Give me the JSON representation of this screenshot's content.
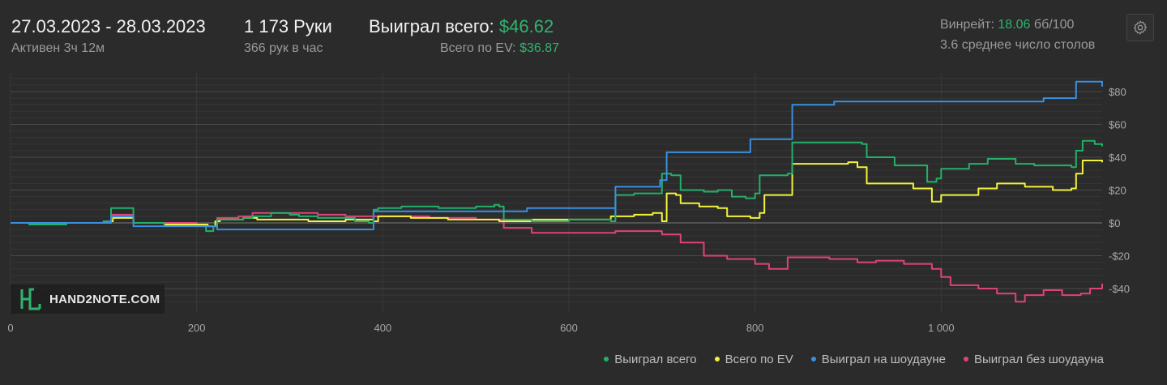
{
  "header": {
    "date_range": "27.03.2023 - 28.03.2023",
    "active_label": "Активен 3ч 12м",
    "hands": "1 173 Руки",
    "hands_per_hour": "366 рук в час",
    "won_total_label": "Выиграл всего:",
    "won_total_value": "$46.62",
    "ev_label": "Всего по EV:",
    "ev_value": "$36.87",
    "winrate_label": "Винрейт:",
    "winrate_value": "18.06",
    "winrate_unit": "бб/100",
    "avg_tables": "3.6 среднее число столов"
  },
  "logo": {
    "text": "HAND2NOTE.COM"
  },
  "icons": {
    "settings": "gear-icon",
    "logo": "hand2note-logo-icon"
  },
  "colors": {
    "won_total": "#23b06a",
    "ev": "#f2f23c",
    "showdown": "#3a8fe0",
    "non_showdown": "#e0427a",
    "background": "#2b2b2b"
  },
  "chart_data": {
    "type": "line",
    "title": "",
    "xlabel": "",
    "ylabel": "",
    "xlim": [
      0,
      1173
    ],
    "ylim": [
      -50,
      90
    ],
    "x_ticks": [
      0,
      200,
      400,
      600,
      800,
      1000
    ],
    "x_tick_labels": [
      "0",
      "200",
      "400",
      "600",
      "800",
      "1 000"
    ],
    "y_ticks": [
      80,
      60,
      40,
      20,
      0,
      -20,
      -40
    ],
    "y_tick_labels": [
      "$80",
      "$60",
      "$40",
      "$20",
      "$0",
      "-$20",
      "-$40"
    ],
    "grid": true,
    "legend_position": "bottom-right",
    "series": [
      {
        "name": "Выиграл всего",
        "color": "#23b06a",
        "points": [
          [
            0,
            0
          ],
          [
            20,
            -1
          ],
          [
            60,
            0
          ],
          [
            100,
            1
          ],
          [
            108,
            9
          ],
          [
            128,
            9
          ],
          [
            132,
            0
          ],
          [
            165,
            -2
          ],
          [
            205,
            -2
          ],
          [
            210,
            -5
          ],
          [
            218,
            -2
          ],
          [
            222,
            2
          ],
          [
            245,
            2
          ],
          [
            250,
            3
          ],
          [
            260,
            4
          ],
          [
            280,
            6
          ],
          [
            300,
            5
          ],
          [
            310,
            4
          ],
          [
            330,
            3
          ],
          [
            370,
            1
          ],
          [
            385,
            0
          ],
          [
            390,
            8
          ],
          [
            395,
            9
          ],
          [
            420,
            10
          ],
          [
            460,
            9
          ],
          [
            500,
            10
          ],
          [
            520,
            11
          ],
          [
            525,
            10
          ],
          [
            530,
            2
          ],
          [
            560,
            1
          ],
          [
            600,
            2
          ],
          [
            630,
            2
          ],
          [
            645,
            1
          ],
          [
            650,
            17
          ],
          [
            670,
            18
          ],
          [
            690,
            18
          ],
          [
            700,
            30
          ],
          [
            710,
            29
          ],
          [
            720,
            20
          ],
          [
            745,
            19
          ],
          [
            760,
            20
          ],
          [
            775,
            16
          ],
          [
            790,
            15
          ],
          [
            800,
            18
          ],
          [
            805,
            29
          ],
          [
            825,
            29
          ],
          [
            835,
            30
          ],
          [
            840,
            49
          ],
          [
            880,
            49
          ],
          [
            915,
            48
          ],
          [
            920,
            40
          ],
          [
            950,
            35
          ],
          [
            985,
            25
          ],
          [
            995,
            27
          ],
          [
            1000,
            33
          ],
          [
            1030,
            36
          ],
          [
            1050,
            39
          ],
          [
            1080,
            36
          ],
          [
            1100,
            35
          ],
          [
            1140,
            34
          ],
          [
            1145,
            44
          ],
          [
            1152,
            50
          ],
          [
            1165,
            48
          ],
          [
            1173,
            46.62
          ]
        ]
      },
      {
        "name": "Всего по EV",
        "color": "#f2f23c",
        "points": [
          [
            0,
            0
          ],
          [
            30,
            0
          ],
          [
            60,
            0
          ],
          [
            100,
            1
          ],
          [
            110,
            3
          ],
          [
            125,
            3
          ],
          [
            132,
            0
          ],
          [
            165,
            -1
          ],
          [
            205,
            -1
          ],
          [
            212,
            -2
          ],
          [
            220,
            1
          ],
          [
            225,
            2
          ],
          [
            250,
            3
          ],
          [
            265,
            2
          ],
          [
            290,
            2
          ],
          [
            320,
            1
          ],
          [
            360,
            2
          ],
          [
            390,
            1
          ],
          [
            395,
            4
          ],
          [
            430,
            3
          ],
          [
            470,
            2
          ],
          [
            525,
            1
          ],
          [
            560,
            2
          ],
          [
            600,
            2
          ],
          [
            645,
            4
          ],
          [
            650,
            4
          ],
          [
            670,
            5
          ],
          [
            690,
            6
          ],
          [
            700,
            1
          ],
          [
            705,
            18
          ],
          [
            715,
            17
          ],
          [
            720,
            12
          ],
          [
            740,
            10
          ],
          [
            760,
            9
          ],
          [
            770,
            4
          ],
          [
            795,
            3
          ],
          [
            805,
            6
          ],
          [
            810,
            17
          ],
          [
            835,
            17
          ],
          [
            840,
            36
          ],
          [
            870,
            36
          ],
          [
            900,
            37
          ],
          [
            910,
            34
          ],
          [
            920,
            24
          ],
          [
            950,
            24
          ],
          [
            970,
            21
          ],
          [
            990,
            13
          ],
          [
            1000,
            17
          ],
          [
            1020,
            17
          ],
          [
            1040,
            21
          ],
          [
            1060,
            24
          ],
          [
            1090,
            22
          ],
          [
            1120,
            20
          ],
          [
            1140,
            21
          ],
          [
            1145,
            30
          ],
          [
            1152,
            38
          ],
          [
            1173,
            36.87
          ]
        ]
      },
      {
        "name": "Выиграл на шоудауне",
        "color": "#3a8fe0",
        "points": [
          [
            0,
            0
          ],
          [
            100,
            0
          ],
          [
            108,
            4
          ],
          [
            128,
            4
          ],
          [
            132,
            -2
          ],
          [
            160,
            -2
          ],
          [
            218,
            -2
          ],
          [
            222,
            -4
          ],
          [
            320,
            -4
          ],
          [
            385,
            -4
          ],
          [
            390,
            7
          ],
          [
            550,
            7
          ],
          [
            555,
            9
          ],
          [
            645,
            9
          ],
          [
            650,
            5
          ],
          [
            650,
            22
          ],
          [
            690,
            22
          ],
          [
            698,
            26
          ],
          [
            700,
            26
          ],
          [
            705,
            43
          ],
          [
            790,
            43
          ],
          [
            795,
            51
          ],
          [
            835,
            51
          ],
          [
            840,
            72
          ],
          [
            880,
            72
          ],
          [
            885,
            74
          ],
          [
            1100,
            74
          ],
          [
            1110,
            76
          ],
          [
            1140,
            76
          ],
          [
            1145,
            86
          ],
          [
            1173,
            83
          ]
        ]
      },
      {
        "name": "Выиграл без шоудауна",
        "color": "#e0427a",
        "points": [
          [
            0,
            0
          ],
          [
            100,
            0
          ],
          [
            108,
            5
          ],
          [
            128,
            5
          ],
          [
            132,
            0
          ],
          [
            160,
            0
          ],
          [
            200,
            -1
          ],
          [
            210,
            -2
          ],
          [
            222,
            3
          ],
          [
            245,
            4
          ],
          [
            260,
            6
          ],
          [
            300,
            6
          ],
          [
            330,
            5
          ],
          [
            360,
            4
          ],
          [
            400,
            4
          ],
          [
            420,
            4
          ],
          [
            450,
            3
          ],
          [
            500,
            2
          ],
          [
            530,
            -3
          ],
          [
            560,
            -6
          ],
          [
            600,
            -6
          ],
          [
            650,
            -5
          ],
          [
            700,
            -7
          ],
          [
            720,
            -12
          ],
          [
            745,
            -20
          ],
          [
            770,
            -22
          ],
          [
            800,
            -25
          ],
          [
            815,
            -28
          ],
          [
            835,
            -21
          ],
          [
            880,
            -22
          ],
          [
            910,
            -24
          ],
          [
            930,
            -23
          ],
          [
            960,
            -25
          ],
          [
            990,
            -28
          ],
          [
            1000,
            -33
          ],
          [
            1010,
            -38
          ],
          [
            1040,
            -40
          ],
          [
            1060,
            -43
          ],
          [
            1080,
            -48
          ],
          [
            1090,
            -44
          ],
          [
            1110,
            -41
          ],
          [
            1130,
            -44
          ],
          [
            1150,
            -43
          ],
          [
            1160,
            -40
          ],
          [
            1173,
            -37
          ]
        ]
      }
    ]
  }
}
